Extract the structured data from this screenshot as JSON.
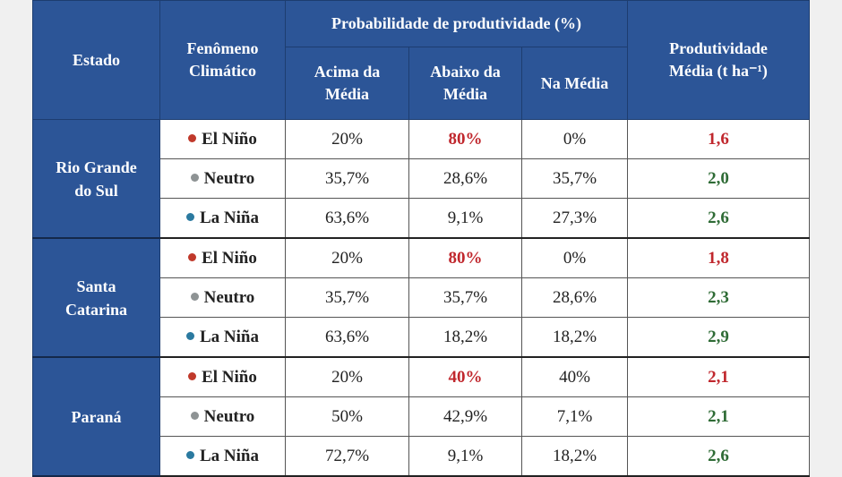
{
  "header": {
    "estado": "Estado",
    "fenomeno": "Fenômeno Climático",
    "probabilidade": "Probabilidade de produtividade (%)",
    "acima": "Acima da Média",
    "abaixo": "Abaixo da Média",
    "na_media": "Na Média",
    "produtividade": "Produtividade Média (t ha⁻¹)"
  },
  "colors": {
    "header_bg": "#2c5597",
    "highlight_red": "#c0272d",
    "value_green": "#2e6b35",
    "el_nino_dot": "#c0392b",
    "neutro_dot": "#8e9394",
    "la_nina_dot": "#2b7aa0"
  },
  "states": [
    {
      "name": "Rio Grande do Sul",
      "rows": [
        {
          "phenomenon": "El Niño",
          "dot": "red",
          "acima": "20%",
          "abaixo": "80%",
          "abaixo_highlight": true,
          "na_media": "0%",
          "prod": "1,6",
          "prod_color": "red"
        },
        {
          "phenomenon": "Neutro",
          "dot": "gray",
          "acima": "35,7%",
          "abaixo": "28,6%",
          "abaixo_highlight": false,
          "na_media": "35,7%",
          "prod": "2,0",
          "prod_color": "green"
        },
        {
          "phenomenon": "La Niña",
          "dot": "blue",
          "acima": "63,6%",
          "abaixo": "9,1%",
          "abaixo_highlight": false,
          "na_media": "27,3%",
          "prod": "2,6",
          "prod_color": "green"
        }
      ]
    },
    {
      "name": "Santa Catarina",
      "rows": [
        {
          "phenomenon": "El Niño",
          "dot": "red",
          "acima": "20%",
          "abaixo": "80%",
          "abaixo_highlight": true,
          "na_media": "0%",
          "prod": "1,8",
          "prod_color": "red"
        },
        {
          "phenomenon": "Neutro",
          "dot": "gray",
          "acima": "35,7%",
          "abaixo": "35,7%",
          "abaixo_highlight": false,
          "na_media": "28,6%",
          "prod": "2,3",
          "prod_color": "green"
        },
        {
          "phenomenon": "La Niña",
          "dot": "blue",
          "acima": "63,6%",
          "abaixo": "18,2%",
          "abaixo_highlight": false,
          "na_media": "18,2%",
          "prod": "2,9",
          "prod_color": "green"
        }
      ]
    },
    {
      "name": "Paraná",
      "rows": [
        {
          "phenomenon": "El Niño",
          "dot": "red",
          "acima": "20%",
          "abaixo": "40%",
          "abaixo_highlight": true,
          "na_media": "40%",
          "prod": "2,1",
          "prod_color": "red"
        },
        {
          "phenomenon": "Neutro",
          "dot": "gray",
          "acima": "50%",
          "abaixo": "42,9%",
          "abaixo_highlight": false,
          "na_media": "7,1%",
          "prod": "2,1",
          "prod_color": "green"
        },
        {
          "phenomenon": "La Niña",
          "dot": "blue",
          "acima": "72,7%",
          "abaixo": "9,1%",
          "abaixo_highlight": false,
          "na_media": "18,2%",
          "prod": "2,6",
          "prod_color": "green"
        }
      ]
    }
  ]
}
